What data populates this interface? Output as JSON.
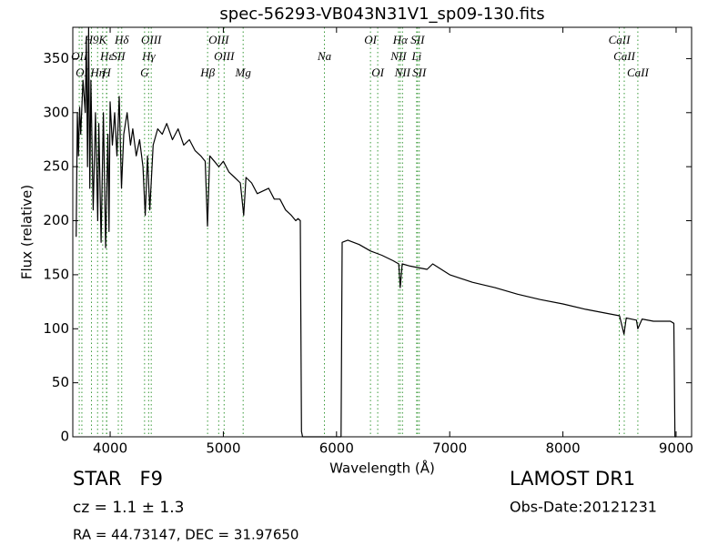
{
  "chart_data": {
    "type": "line",
    "title": "spec-56293-VB043N31V1_sp09-130.fits",
    "xlabel": "Wavelength (Å)",
    "ylabel": "Flux (relative)",
    "color": "#000000",
    "line_color": "#3a9a3a",
    "xlim": [
      3670,
      9137
    ],
    "ylim": [
      0,
      379
    ],
    "xticks": [
      4000,
      5000,
      6000,
      7000,
      8000,
      9000
    ],
    "yticks": [
      0,
      50,
      100,
      150,
      200,
      250,
      300,
      350
    ],
    "x": [
      3700,
      3710,
      3720,
      3730,
      3740,
      3760,
      3780,
      3790,
      3800,
      3810,
      3820,
      3830,
      3850,
      3870,
      3890,
      3900,
      3920,
      3940,
      3960,
      3980,
      3990,
      4000,
      4020,
      4040,
      4060,
      4080,
      4100,
      4120,
      4150,
      4180,
      4200,
      4230,
      4260,
      4290,
      4310,
      4330,
      4350,
      4380,
      4420,
      4460,
      4500,
      4550,
      4600,
      4650,
      4700,
      4750,
      4800,
      4840,
      4860,
      4880,
      4920,
      4960,
      5000,
      5050,
      5100,
      5150,
      5180,
      5200,
      5250,
      5300,
      5400,
      5450,
      5500,
      5550,
      5600,
      5640,
      5660,
      5680,
      5690,
      5700,
      6040,
      6050,
      6100,
      6200,
      6300,
      6400,
      6500,
      6550,
      6563,
      6580,
      6650,
      6700,
      6800,
      6850,
      7000,
      7200,
      7400,
      7600,
      7800,
      8000,
      8200,
      8400,
      8500,
      8540,
      8560,
      8650,
      8662,
      8700,
      8800,
      8950,
      8980,
      8990,
      9000
    ],
    "values": [
      185,
      300,
      260,
      305,
      280,
      330,
      300,
      370,
      250,
      379,
      230,
      330,
      210,
      300,
      200,
      290,
      180,
      300,
      175,
      280,
      190,
      310,
      270,
      300,
      260,
      315,
      230,
      280,
      300,
      270,
      285,
      260,
      275,
      250,
      205,
      260,
      210,
      270,
      285,
      280,
      290,
      275,
      285,
      270,
      275,
      265,
      260,
      255,
      195,
      260,
      255,
      250,
      255,
      245,
      240,
      235,
      205,
      240,
      235,
      225,
      230,
      220,
      220,
      210,
      205,
      200,
      202,
      200,
      5,
      0,
      0,
      180,
      182,
      178,
      172,
      168,
      163,
      160,
      138,
      160,
      158,
      157,
      155,
      160,
      150,
      143,
      138,
      132,
      127,
      123,
      118,
      114,
      112,
      95,
      110,
      108,
      100,
      109,
      107,
      107,
      105,
      0,
      0
    ],
    "line_labels": [
      [
        {
          "label": "H9",
          "x": 3835
        },
        {
          "label": "K",
          "x": 3934
        },
        {
          "label": "Hδ",
          "x": 4102
        },
        {
          "label": "OIII",
          "x": 4363
        },
        {
          "label": "OIII",
          "x": 4959
        },
        {
          "label": "OI",
          "x": 6300
        },
        {
          "label": "Hα",
          "x": 6563
        },
        {
          "label": "SII",
          "x": 6716
        },
        {
          "label": "CaII",
          "x": 8498
        }
      ],
      [
        {
          "label": "OII",
          "x": 3727
        },
        {
          "label": "Hε",
          "x": 3970
        },
        {
          "label": "SII",
          "x": 4072
        },
        {
          "label": "Hγ",
          "x": 4340
        },
        {
          "label": "OIII",
          "x": 5007
        },
        {
          "label": "Na",
          "x": 5893
        },
        {
          "label": "NII",
          "x": 6548
        },
        {
          "label": "Li",
          "x": 6708
        },
        {
          "label": "CaII",
          "x": 8542
        }
      ],
      [
        {
          "label": "OI",
          "x": 3750
        },
        {
          "label": "Hη",
          "x": 3889
        },
        {
          "label": "H",
          "x": 3968
        },
        {
          "label": "G",
          "x": 4304
        },
        {
          "label": "Hβ",
          "x": 4861
        },
        {
          "label": "Mg",
          "x": 5175
        },
        {
          "label": "OI",
          "x": 6364
        },
        {
          "label": "NII",
          "x": 6583
        },
        {
          "label": "SII",
          "x": 6731
        },
        {
          "label": "CaII",
          "x": 8662
        }
      ]
    ],
    "footer": {
      "class": "STAR   F9",
      "cz": "cz = 1.1 ± 1.3",
      "coords": "RA = 44.73147, DEC = 31.97650",
      "release": "LAMOST DR1",
      "date": "Obs-Date:20121231"
    }
  }
}
